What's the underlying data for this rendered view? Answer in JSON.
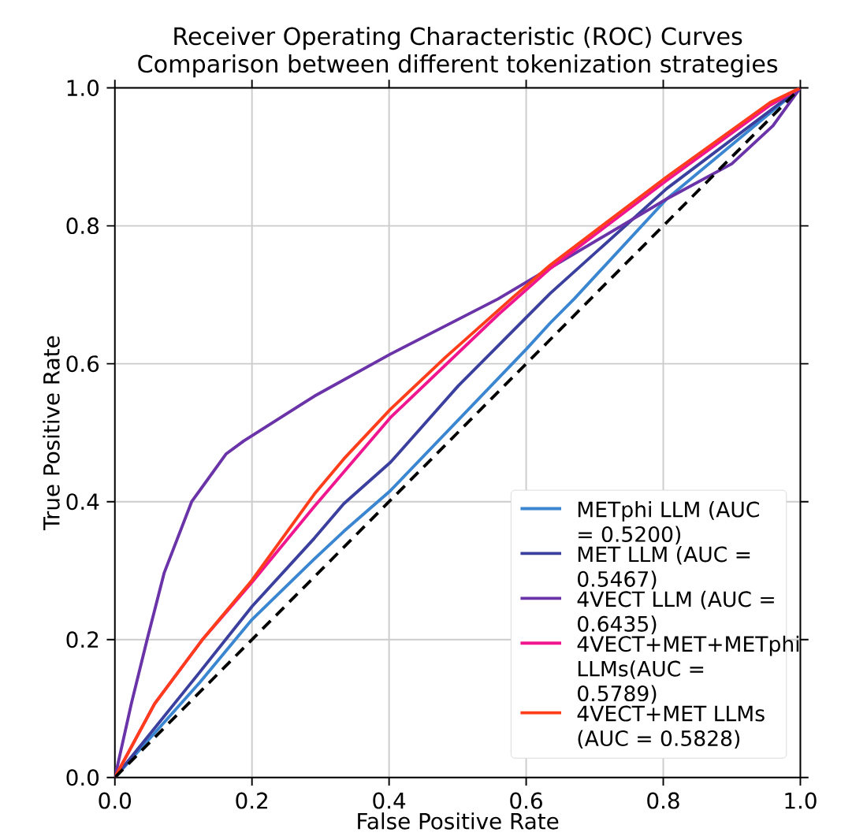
{
  "chart_data": {
    "type": "line",
    "title": "Receiver Operating Characteristic (ROC) Curves",
    "subtitle": "Comparison between different tokenization strategies",
    "xlabel": "False Positive Rate",
    "ylabel": "True Positive Rate",
    "xlim": [
      0,
      1
    ],
    "ylim": [
      0,
      1
    ],
    "xticks": [
      {
        "value": 0,
        "label": "0.0"
      },
      {
        "value": 0.2,
        "label": "0.2"
      },
      {
        "value": 0.4,
        "label": "0.4"
      },
      {
        "value": 0.6,
        "label": "0.6"
      },
      {
        "value": 0.8,
        "label": "0.8"
      },
      {
        "value": 1,
        "label": "1.0"
      }
    ],
    "yticks": [
      {
        "value": 0,
        "label": "0.0"
      },
      {
        "value": 0.2,
        "label": "0.2"
      },
      {
        "value": 0.4,
        "label": "0.4"
      },
      {
        "value": 0.6,
        "label": "0.6"
      },
      {
        "value": 0.8,
        "label": "0.8"
      },
      {
        "value": 1,
        "label": "1.0"
      }
    ],
    "grid": true,
    "legend": "bottom right",
    "marker": "none",
    "series": [
      {
        "name": "METphi LLM (AUC = 0.5200)",
        "color": "#3a86d0",
        "x": [
          0,
          0.124,
          0.2,
          0.291,
          0.334,
          0.402,
          0.601,
          0.635,
          0.67,
          0.805,
          1
        ],
        "values": [
          0,
          0.138,
          0.229,
          0.317,
          0.357,
          0.416,
          0.622,
          0.659,
          0.694,
          0.839,
          1
        ]
      },
      {
        "name": "MET LLM (AUC = 0.5467)",
        "color": "#3b3f9e",
        "x": [
          0,
          0.124,
          0.2,
          0.291,
          0.334,
          0.402,
          0.501,
          0.627,
          0.635,
          0.805,
          1
        ],
        "values": [
          0,
          0.153,
          0.248,
          0.347,
          0.397,
          0.457,
          0.568,
          0.694,
          0.702,
          0.854,
          1
        ]
      },
      {
        "name": "4VECT LLM (AUC = 0.6435)",
        "color": "#6a33a8",
        "x": [
          0,
          0.024,
          0.047,
          0.072,
          0.112,
          0.162,
          0.188,
          0.291,
          0.402,
          0.559,
          0.635,
          0.739,
          0.805,
          0.9,
          0.96,
          1
        ],
        "values": [
          0,
          0.107,
          0.2,
          0.297,
          0.4,
          0.469,
          0.488,
          0.553,
          0.614,
          0.694,
          null,
          0.8,
          0.839,
          0.89,
          0.945,
          1
        ]
      },
      {
        "name": "4VECT+MET+METphi LLMs(AUC = 0.5789)",
        "color": "#f0168f",
        "x": [
          0,
          0.058,
          0.127,
          0.2,
          0.291,
          0.334,
          0.402,
          0.559,
          0.635,
          0.805,
          0.956,
          1
        ],
        "values": [
          0,
          0.107,
          0.199,
          0.283,
          0.393,
          0.443,
          0.522,
          0.671,
          0.738,
          0.866,
          0.975,
          1
        ]
      },
      {
        "name": "4VECT+MET LLMs (AUC = 0.5828)",
        "color": "#ff3d1a",
        "x": [
          0,
          0.058,
          0.127,
          0.2,
          0.291,
          0.334,
          0.402,
          0.483,
          0.578,
          0.635,
          0.805,
          0.956,
          1
        ],
        "values": [
          0,
          0.107,
          0.199,
          0.286,
          0.411,
          0.462,
          0.534,
          0.61,
          0.694,
          0.743,
          0.871,
          0.979,
          1
        ]
      },
      {
        "color": "#000000",
        "line_style": "dashed",
        "x": [
          0,
          1
        ],
        "values": [
          0,
          1
        ]
      }
    ]
  }
}
